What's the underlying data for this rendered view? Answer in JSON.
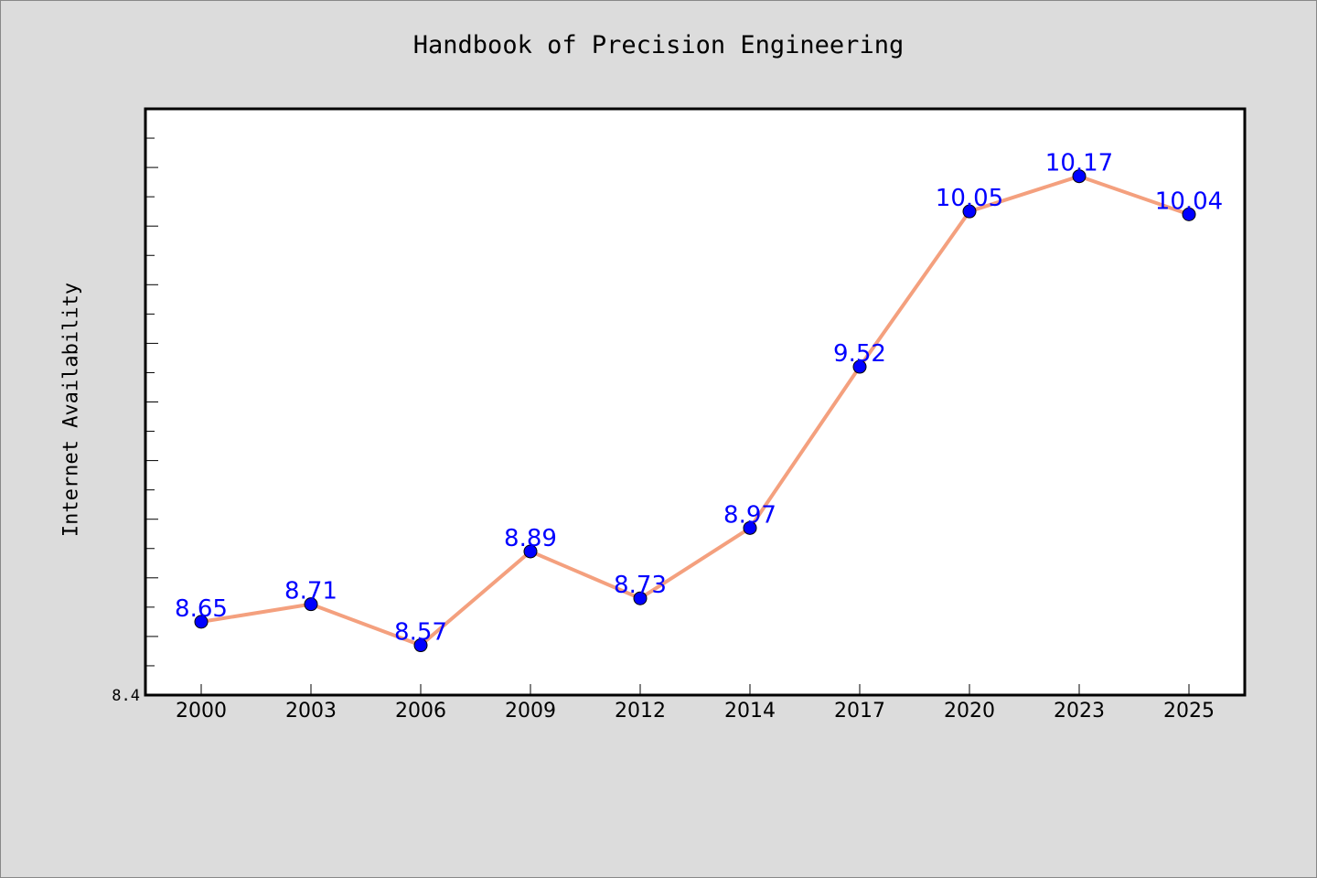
{
  "chart_data": {
    "type": "line",
    "title": "Handbook of Precision Engineering",
    "ylabel": "Internet Availability",
    "xlabel": "",
    "categories": [
      "2000",
      "2003",
      "2006",
      "2009",
      "2012",
      "2014",
      "2017",
      "2020",
      "2023",
      "2025"
    ],
    "series": [
      {
        "values": [
          8.65,
          8.71,
          8.57,
          8.89,
          8.73,
          8.97,
          9.52,
          10.05,
          10.17,
          10.04
        ],
        "data_labels": [
          "8.65",
          "8.71",
          "8.57",
          "8.89",
          "8.73",
          "8.97",
          "9.52",
          "10.05",
          "10.17",
          "10.04"
        ],
        "line_color": "#f4a07e",
        "marker_color": "#0000ff"
      }
    ],
    "ylim": [
      8.4,
      10.4
    ],
    "y_tick_labels": [
      "8.4"
    ],
    "grid": false,
    "legend": "none"
  },
  "colors": {
    "background": "#dcdcdc",
    "plot_background": "#ffffff",
    "line": "#f4a07e",
    "marker": "#0000ff",
    "data_label": "#0000ff"
  }
}
